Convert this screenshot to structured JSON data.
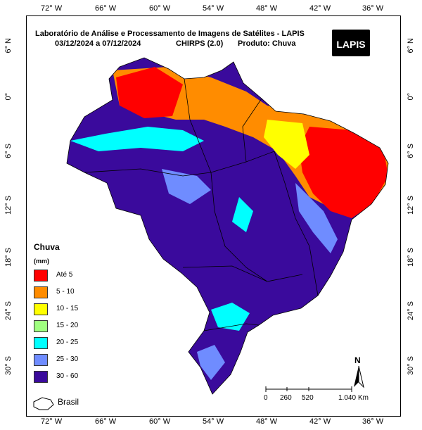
{
  "title": "Laboratório de Análise e Processamento de Imagens de Satélites - LAPIS",
  "date_range": "03/12/2024  a 07/12/2024",
  "source": "CHIRPS (2.0)",
  "product": "Produto: Chuva",
  "logo_text": "LAPIS",
  "longitude_ticks": [
    "72° W",
    "66° W",
    "60° W",
    "54° W",
    "48° W",
    "42° W",
    "36° W"
  ],
  "latitude_ticks": [
    "6° N",
    "0°",
    "6° S",
    "12° S",
    "18° S",
    "24° S",
    "30° S"
  ],
  "legend": {
    "title": "Chuva",
    "unit": "(mm)",
    "items": [
      {
        "label": "Até 5",
        "color": "#ff0000"
      },
      {
        "label": "5 - 10",
        "color": "#ff8c00"
      },
      {
        "label": "10 - 15",
        "color": "#ffff00"
      },
      {
        "label": "15 - 20",
        "color": "#a0ff80"
      },
      {
        "label": "20 - 25",
        "color": "#00ffff"
      },
      {
        "label": "25 - 30",
        "color": "#6f8cff"
      },
      {
        "label": "30 - 60",
        "color": "#3a0a9c"
      }
    ]
  },
  "inset_label": "Brasil",
  "scale_bar": {
    "labels": [
      "0",
      "260",
      "520",
      "1.040"
    ],
    "unit": "Km"
  },
  "north_label": "N"
}
